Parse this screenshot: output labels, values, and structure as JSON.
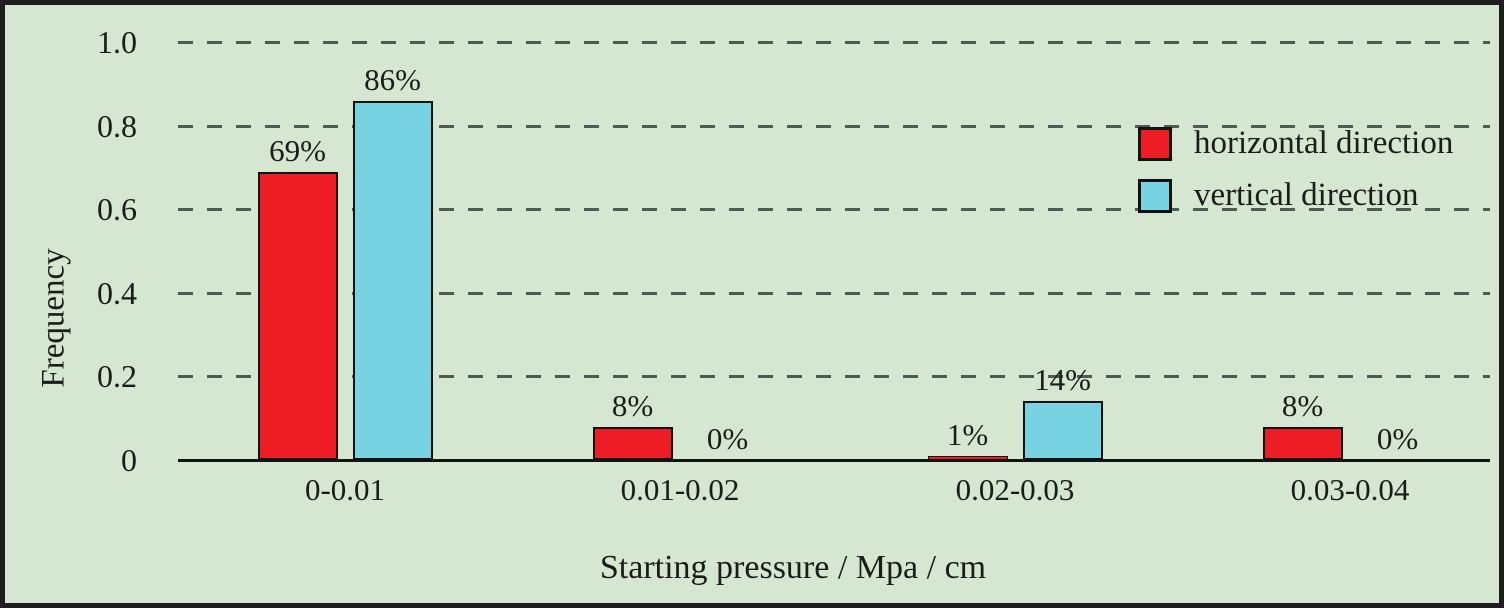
{
  "chart_data": {
    "type": "bar",
    "title": "",
    "xlabel": "Starting pressure / Mpa / cm",
    "ylabel": "Frequency",
    "categories": [
      "0-0.01",
      "0.01-0.02",
      "0.02-0.03",
      "0.03-0.04"
    ],
    "series": [
      {
        "name": "horizontal direction",
        "color": "#ee1c25",
        "values": [
          0.69,
          0.08,
          0.01,
          0.08
        ],
        "labels": [
          "69%",
          "8%",
          "1%",
          "8%"
        ]
      },
      {
        "name": "vertical direction",
        "color": "#77d3e2",
        "values": [
          0.86,
          0.0,
          0.14,
          0.0
        ],
        "labels": [
          "86%",
          "0%",
          "14%",
          "0%"
        ]
      }
    ],
    "y_ticks": [
      "1.0",
      "0.8",
      "0.6",
      "0.4",
      "0.2",
      "0"
    ],
    "y_tick_values": [
      1.0,
      0.8,
      0.6,
      0.4,
      0.2,
      0
    ],
    "ylim": [
      0,
      1.0
    ],
    "grid": "horizontal-dashed",
    "legend_position": "top-right",
    "colors": {
      "background": "#d5e7d1",
      "grid": "#4e5a52",
      "axis": "#141414",
      "text": "#1b1b1b",
      "horizontal_series": "#ee1c25",
      "vertical_series": "#77d3e2"
    }
  }
}
